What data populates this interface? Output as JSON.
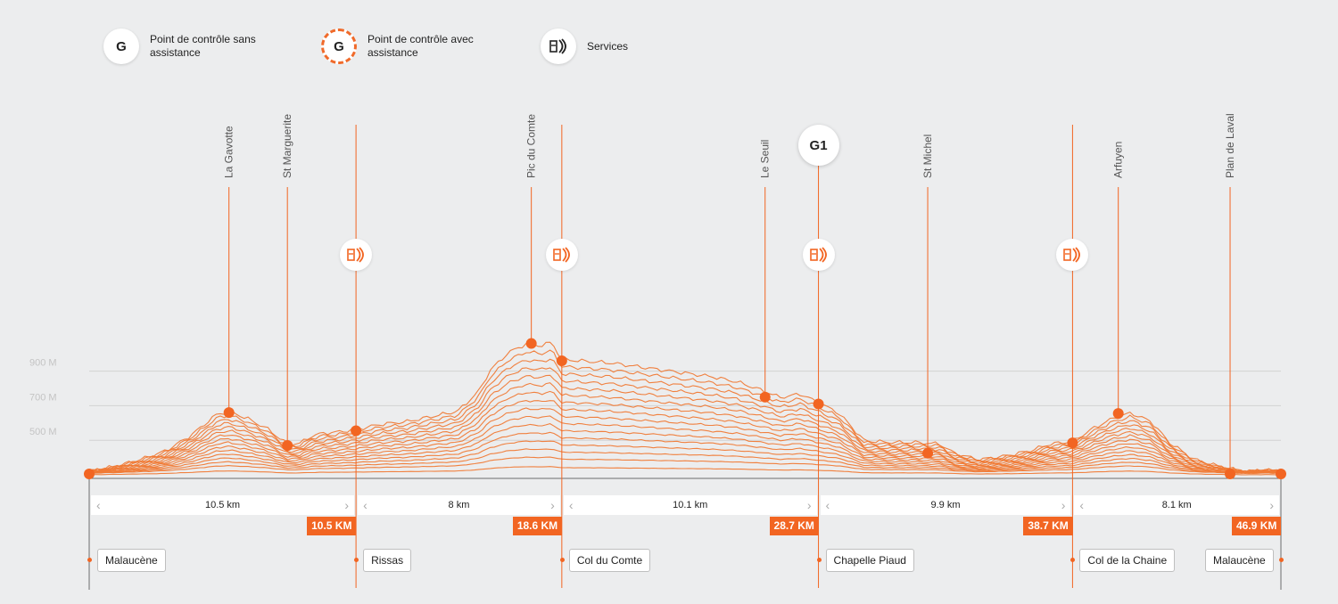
{
  "legend": [
    {
      "badge": "G",
      "text": "Point de contrôle sans assistance",
      "style": "plain"
    },
    {
      "badge": "G",
      "text": "Point de contrôle avec assistance",
      "style": "dashed"
    },
    {
      "badge": "services-icon",
      "text": "Services",
      "style": "icon"
    }
  ],
  "colors": {
    "accent": "#f26522",
    "line": "#f07a35",
    "grid": "#d2d2d2",
    "background": "#ecedee"
  },
  "chart_data": {
    "type": "area",
    "xlabel": "",
    "ylabel": "",
    "y_ticks": [
      "500 M",
      "700 M",
      "900 M"
    ],
    "y_tick_values": [
      500,
      700,
      900
    ],
    "ylim": [
      300,
      1180
    ],
    "xlim": [
      0,
      46.9
    ],
    "profile": [
      [
        0,
        312
      ],
      [
        1.0,
        340
      ],
      [
        2.0,
        380
      ],
      [
        3.0,
        430
      ],
      [
        4.0,
        520
      ],
      [
        5.0,
        640
      ],
      [
        5.5,
        660
      ],
      [
        6.2,
        620
      ],
      [
        7.0,
        560
      ],
      [
        7.8,
        470
      ],
      [
        8.3,
        475
      ],
      [
        8.8,
        520
      ],
      [
        9.3,
        535
      ],
      [
        9.8,
        540
      ],
      [
        10.5,
        555
      ],
      [
        11.5,
        585
      ],
      [
        12.5,
        600
      ],
      [
        13.5,
        630
      ],
      [
        14.5,
        660
      ],
      [
        15.3,
        770
      ],
      [
        15.8,
        900
      ],
      [
        16.5,
        1000
      ],
      [
        17.2,
        1050
      ],
      [
        17.8,
        1040
      ],
      [
        18.2,
        1060
      ],
      [
        18.6,
        960
      ],
      [
        19.5,
        950
      ],
      [
        20.5,
        940
      ],
      [
        21.5,
        920
      ],
      [
        22.5,
        900
      ],
      [
        23.5,
        880
      ],
      [
        24.5,
        860
      ],
      [
        25.5,
        830
      ],
      [
        26.5,
        780
      ],
      [
        27.2,
        740
      ],
      [
        28.0,
        760
      ],
      [
        28.7,
        710
      ],
      [
        29.5,
        650
      ],
      [
        30.5,
        490
      ],
      [
        31.5,
        480
      ],
      [
        32.5,
        480
      ],
      [
        33.5,
        470
      ],
      [
        34.0,
        420
      ],
      [
        35.0,
        380
      ],
      [
        36.0,
        400
      ],
      [
        37.0,
        430
      ],
      [
        37.8,
        470
      ],
      [
        38.7,
        485
      ],
      [
        39.5,
        560
      ],
      [
        40.3,
        620
      ],
      [
        41.0,
        650
      ],
      [
        41.8,
        600
      ],
      [
        42.5,
        480
      ],
      [
        43.5,
        380
      ],
      [
        44.5,
        340
      ],
      [
        45.5,
        310
      ],
      [
        46.2,
        320
      ],
      [
        46.9,
        315
      ]
    ],
    "waypoints": [
      {
        "name": "La Gavotte",
        "km": 5.5,
        "elev": 660
      },
      {
        "name": "St Marguerite",
        "km": 7.8,
        "elev": 470
      },
      {
        "name": "Pic du Comte",
        "km": 17.4,
        "elev": 1060
      },
      {
        "name": "Le Seuil",
        "km": 26.6,
        "elev": 750
      },
      {
        "name": "St Michel",
        "km": 33.0,
        "elev": 425
      },
      {
        "name": "Arfuyen",
        "km": 40.5,
        "elev": 655
      },
      {
        "name": "Plan de Laval",
        "km": 44.9,
        "elev": 305
      }
    ],
    "services_km": [
      10.5,
      18.6,
      28.7,
      38.7
    ],
    "checkpoint": {
      "label": "G1",
      "km": 28.7
    },
    "segments": [
      {
        "distance": "10.5 km",
        "end_label": "10.5 KM"
      },
      {
        "distance": "8 km",
        "end_label": "18.6 KM"
      },
      {
        "distance": "10.1 km",
        "end_label": "28.7 KM"
      },
      {
        "distance": "9.9 km",
        "end_label": "38.7 KM"
      },
      {
        "distance": "8.1 km",
        "end_label": "46.9 KM"
      }
    ],
    "places": [
      "Malaucène",
      "Rissas",
      "Col du Comte",
      "Chapelle Piaud",
      "Col de la Chaine",
      "Malaucène"
    ]
  }
}
